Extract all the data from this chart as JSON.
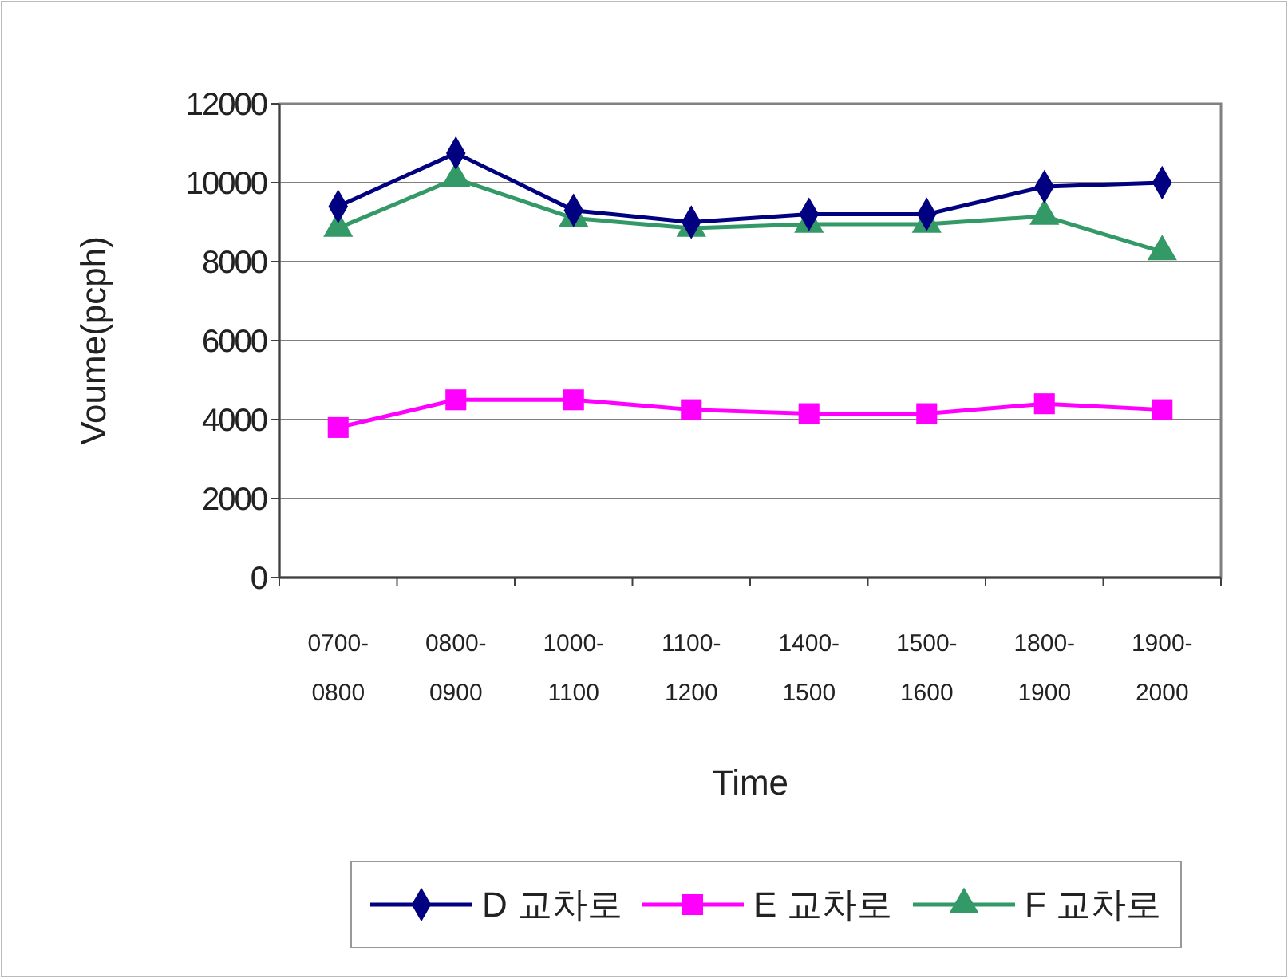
{
  "chart_data": {
    "type": "line",
    "xlabel": "Time",
    "ylabel": "Voume(pcph)",
    "categories": [
      "0700-0800",
      "0800-0900",
      "1000-1100",
      "1100-1200",
      "1400-1500",
      "1500-1600",
      "1800-1900",
      "1900-2000"
    ],
    "series": [
      {
        "name": "D 교차로",
        "color": "#000080",
        "marker": "diamond",
        "values": [
          9400,
          10750,
          9300,
          9000,
          9200,
          9200,
          9900,
          10000
        ]
      },
      {
        "name": "E 교차로",
        "color": "#ff00ff",
        "marker": "square",
        "values": [
          3800,
          4500,
          4500,
          4250,
          4150,
          4150,
          4400,
          4250
        ]
      },
      {
        "name": "F 교차로",
        "color": "#339966",
        "marker": "triangle",
        "values": [
          8850,
          10100,
          9100,
          8850,
          8950,
          8950,
          9150,
          8250
        ]
      }
    ],
    "ylim": [
      0,
      12000
    ],
    "yticks": [
      0,
      2000,
      4000,
      6000,
      8000,
      10000,
      12000
    ],
    "grid": "y",
    "legend": "bottom",
    "line_style": "solid"
  }
}
